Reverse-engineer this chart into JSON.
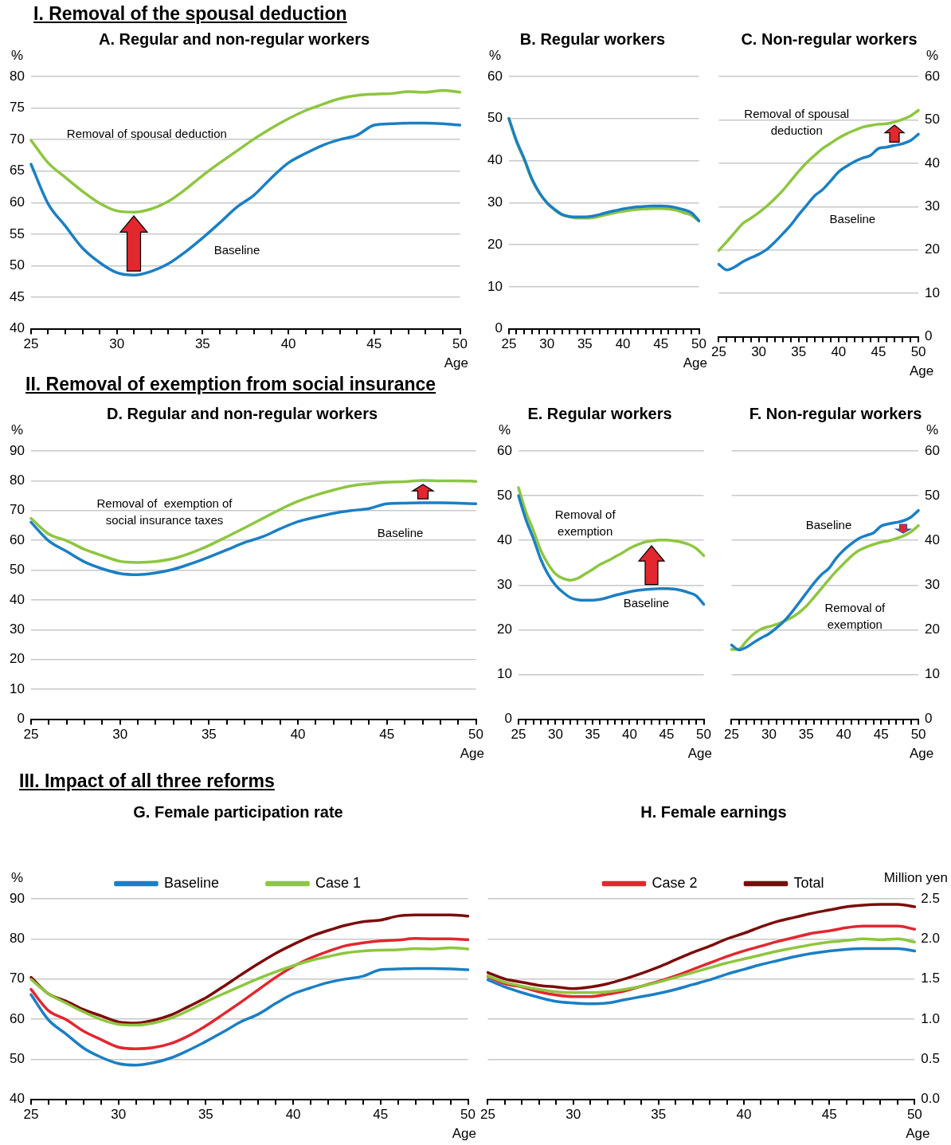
{
  "chart_data": [
    {
      "type": "line",
      "title": "A. Regular and non-regular workers",
      "annotations": [
        "I. Removal of the spousal deduction"
      ],
      "ylabel": "%",
      "xlabel": "Age",
      "categories": [
        "25",
        null,
        null,
        null,
        null,
        "30",
        null,
        null,
        null,
        null,
        "35",
        null,
        null,
        null,
        null,
        "40",
        null,
        null,
        null,
        null,
        "45",
        null,
        null,
        null,
        null,
        "50"
      ],
      "ylim": [
        40,
        80
      ],
      "yticks": [
        40,
        45,
        50,
        55,
        60,
        65,
        70,
        75,
        80
      ],
      "grid": "y",
      "series": [
        {
          "name": "Baseline",
          "color": "#1b7fc4",
          "values": [
            66.1,
            59.8,
            56.3,
            52.8,
            50.5,
            48.9,
            48.5,
            49.1,
            50.3,
            52.2,
            54.4,
            56.8,
            59.3,
            61.2,
            63.9,
            66.3,
            67.8,
            69.1,
            70.0,
            70.7,
            72.3,
            72.5,
            72.6,
            72.6,
            72.5,
            72.3
          ]
        },
        {
          "name": "Removal of spousal deduction",
          "color": "#8dc63f",
          "values": [
            69.9,
            66.3,
            64.0,
            61.8,
            59.9,
            58.7,
            58.5,
            59.0,
            60.2,
            62.1,
            64.3,
            66.3,
            68.2,
            70.1,
            71.8,
            73.3,
            74.6,
            75.6,
            76.5,
            77.0,
            77.2,
            77.3,
            77.6,
            77.5,
            77.8,
            77.5
          ]
        }
      ]
    },
    {
      "type": "line",
      "title": "B. Regular workers",
      "ylabel": "%",
      "xlabel": "Age",
      "categories": [
        "25",
        null,
        null,
        null,
        null,
        "30",
        null,
        null,
        null,
        null,
        "35",
        null,
        null,
        null,
        null,
        "40",
        null,
        null,
        null,
        null,
        "45",
        null,
        null,
        null,
        null,
        "50"
      ],
      "ylim": [
        0,
        60
      ],
      "yticks": [
        0,
        10,
        20,
        30,
        40,
        50,
        60
      ],
      "grid": "y",
      "series": [
        {
          "color": "#1b7fc4",
          "values": [
            50,
            44.7,
            40.5,
            35.8,
            32.4,
            30,
            28.4,
            27.2,
            26.7,
            26.6,
            26.6,
            26.8,
            27.2,
            27.7,
            28.1,
            28.5,
            28.8,
            29.0,
            29.1,
            29.2,
            29.2,
            29.1,
            28.8,
            28.3,
            27.6,
            25.7
          ]
        },
        {
          "color": "#8dc63f",
          "values": [
            50,
            44.5,
            40.3,
            35.6,
            32.3,
            30,
            28.3,
            27.1,
            26.6,
            26.3,
            26.3,
            26.4,
            26.8,
            27.2,
            27.6,
            27.9,
            28.2,
            28.4,
            28.5,
            28.6,
            28.6,
            28.5,
            28.2,
            27.6,
            27.0,
            25.6
          ]
        }
      ]
    },
    {
      "type": "line",
      "title": "C. Non-regular workers",
      "y2label": "%",
      "xlabel": "Age",
      "categories": [
        "25",
        null,
        null,
        null,
        null,
        "30",
        null,
        null,
        null,
        null,
        "35",
        null,
        null,
        null,
        null,
        "40",
        null,
        null,
        null,
        null,
        "45",
        null,
        null,
        null,
        null,
        "50"
      ],
      "y2lim": [
        0,
        60
      ],
      "y2ticks": [
        0,
        10,
        20,
        30,
        40,
        50,
        60
      ],
      "grid": "y",
      "series": [
        {
          "name": "Baseline",
          "axis": "y2",
          "color": "#1b7fc4",
          "values": [
            16.7,
            15.4,
            16.1,
            17.3,
            18.2,
            19.0,
            20.1,
            21.8,
            23.7,
            25.7,
            28.1,
            30.3,
            32.5,
            33.9,
            35.9,
            38.0,
            39.3,
            40.4,
            41.2,
            41.8,
            43.4,
            43.7,
            44.1,
            44.5,
            45.2,
            46.7
          ]
        },
        {
          "name": "Removal of spousal deduction",
          "axis": "y2",
          "color": "#8dc63f",
          "values": [
            19.9,
            21.9,
            24.0,
            26.1,
            27.3,
            28.6,
            30.1,
            31.8,
            33.7,
            35.9,
            38.1,
            40.1,
            41.8,
            43.4,
            44.6,
            45.8,
            46.8,
            47.6,
            48.3,
            48.7,
            49.0,
            49.1,
            49.5,
            50.1,
            50.9,
            52.2
          ]
        }
      ]
    },
    {
      "type": "line",
      "title": "D. Regular and non-regular workers",
      "annotations": [
        "II. Removal of exemption from social insurance"
      ],
      "ylabel": "%",
      "xlabel": "Age",
      "categories": [
        "25",
        null,
        null,
        null,
        null,
        "30",
        null,
        null,
        null,
        null,
        "35",
        null,
        null,
        null,
        null,
        "40",
        null,
        null,
        null,
        null,
        "45",
        null,
        null,
        null,
        null,
        "50"
      ],
      "ylim": [
        0,
        90
      ],
      "yticks": [
        0,
        10,
        20,
        30,
        40,
        50,
        60,
        70,
        80,
        90
      ],
      "grid": "y",
      "series": [
        {
          "name": "Baseline",
          "color": "#1b7fc4",
          "values": [
            66.1,
            59.8,
            56.3,
            52.8,
            50.5,
            48.9,
            48.5,
            49.1,
            50.3,
            52.2,
            54.4,
            56.8,
            59.3,
            61.2,
            63.9,
            66.3,
            67.8,
            69.1,
            70.0,
            70.7,
            72.3,
            72.5,
            72.6,
            72.6,
            72.5,
            72.3
          ]
        },
        {
          "name": "Removal of  exemption of social insurance taxes",
          "color": "#8dc63f",
          "values": [
            67.4,
            62.1,
            59.9,
            57.0,
            54.9,
            53.0,
            52.6,
            52.9,
            53.9,
            55.8,
            58.3,
            61.2,
            64.2,
            67.3,
            70.4,
            73.1,
            75.2,
            76.9,
            78.3,
            79.0,
            79.5,
            79.7,
            80.1,
            80.0,
            80.0,
            79.8
          ]
        }
      ]
    },
    {
      "type": "line",
      "title": "E. Regular workers",
      "ylabel": "%",
      "xlabel": "Age",
      "categories": [
        "25",
        null,
        null,
        null,
        null,
        "30",
        null,
        null,
        null,
        null,
        "35",
        null,
        null,
        null,
        null,
        "40",
        null,
        null,
        null,
        null,
        "45",
        null,
        null,
        null,
        null,
        "50"
      ],
      "ylim": [
        0,
        60
      ],
      "yticks": [
        0,
        10,
        20,
        30,
        40,
        50,
        60
      ],
      "grid": "y",
      "series": [
        {
          "name": "Baseline",
          "color": "#1b7fc4",
          "values": [
            50,
            44.7,
            40.5,
            35.8,
            32.4,
            30,
            28.4,
            27.2,
            26.7,
            26.6,
            26.6,
            26.8,
            27.2,
            27.7,
            28.1,
            28.5,
            28.8,
            29.0,
            29.1,
            29.2,
            29.2,
            29.1,
            28.8,
            28.3,
            27.6,
            25.7
          ]
        },
        {
          "name": "Removal of exemption",
          "color": "#8dc63f",
          "values": [
            51.8,
            46.4,
            42.3,
            37.8,
            34.7,
            32.5,
            31.5,
            31.1,
            31.5,
            32.5,
            33.5,
            34.6,
            35.4,
            36.3,
            37.2,
            38.2,
            39.0,
            39.6,
            39.9,
            40.1,
            40.1,
            39.9,
            39.6,
            39.1,
            38.2,
            36.6
          ]
        }
      ]
    },
    {
      "type": "line",
      "title": "F. Non-regular workers",
      "y2label": "%",
      "xlabel": "Age",
      "categories": [
        "25",
        null,
        null,
        null,
        null,
        "30",
        null,
        null,
        null,
        null,
        "35",
        null,
        null,
        null,
        null,
        "40",
        null,
        null,
        null,
        null,
        "45",
        null,
        null,
        null,
        null,
        "50"
      ],
      "y2lim": [
        0,
        60
      ],
      "y2ticks": [
        0,
        10,
        20,
        30,
        40,
        50,
        60
      ],
      "grid": "y",
      "series": [
        {
          "name": "Baseline",
          "axis": "y2",
          "color": "#1b7fc4",
          "values": [
            16.6,
            15.5,
            16.1,
            17.2,
            18.2,
            19.1,
            20.4,
            21.9,
            23.8,
            26.0,
            28.2,
            30.4,
            32.3,
            33.7,
            36.0,
            37.8,
            39.2,
            40.4,
            41.1,
            41.7,
            43.2,
            43.7,
            44.0,
            44.4,
            45.2,
            46.7
          ]
        },
        {
          "name": "Removal of exemption",
          "axis": "y2",
          "color": "#8dc63f",
          "values": [
            15.6,
            15.7,
            17.5,
            19.1,
            20.2,
            20.7,
            21.2,
            21.9,
            22.7,
            23.8,
            25.3,
            27.2,
            29.2,
            31.2,
            33.1,
            34.8,
            36.4,
            37.7,
            38.5,
            39.1,
            39.6,
            39.9,
            40.4,
            41.0,
            41.9,
            43.3
          ]
        }
      ]
    },
    {
      "type": "line",
      "title": "G. Female participation rate",
      "annotations": [
        "III. Impact of all three reforms"
      ],
      "ylabel": "%",
      "xlabel": "Age",
      "legend": "top",
      "categories": [
        "25",
        null,
        null,
        null,
        null,
        "30",
        null,
        null,
        null,
        null,
        "35",
        null,
        null,
        null,
        null,
        "40",
        null,
        null,
        null,
        null,
        "45",
        null,
        null,
        null,
        null,
        "50"
      ],
      "ylim": [
        40,
        90
      ],
      "yticks": [
        40,
        50,
        60,
        70,
        80,
        90
      ],
      "grid": "y",
      "series": [
        {
          "name": "Baseline",
          "color": "#1b7fc4",
          "values": [
            66.1,
            59.8,
            56.3,
            52.8,
            50.5,
            48.9,
            48.5,
            49.1,
            50.3,
            52.2,
            54.4,
            56.8,
            59.3,
            61.2,
            63.9,
            66.3,
            67.8,
            69.1,
            70.0,
            70.7,
            72.3,
            72.5,
            72.6,
            72.6,
            72.5,
            72.3
          ]
        },
        {
          "name": "Case 1",
          "color": "#8dc63f",
          "values": [
            69.9,
            66.3,
            64.0,
            61.8,
            59.9,
            58.7,
            58.5,
            59.0,
            60.2,
            62.1,
            64.3,
            66.3,
            68.2,
            70.1,
            71.8,
            73.3,
            74.6,
            75.6,
            76.5,
            77.0,
            77.2,
            77.3,
            77.6,
            77.5,
            77.8,
            77.5
          ]
        },
        {
          "color": "#e2272f",
          "values": [
            67.4,
            62.1,
            59.9,
            57.0,
            54.9,
            53.0,
            52.6,
            52.9,
            53.9,
            55.8,
            58.3,
            61.2,
            64.2,
            67.3,
            70.4,
            73.1,
            75.2,
            76.9,
            78.3,
            79.0,
            79.5,
            79.7,
            80.1,
            80.0,
            80.0,
            79.8
          ]
        },
        {
          "color": "#7b0c0c",
          "values": [
            70.4,
            66.3,
            64.5,
            62.4,
            60.8,
            59.3,
            59.0,
            59.7,
            61.0,
            63.1,
            65.3,
            68.1,
            71.0,
            73.8,
            76.4,
            78.6,
            80.6,
            82.1,
            83.4,
            84.3,
            84.7,
            85.7,
            86.0,
            86.0,
            86.0,
            85.7
          ]
        }
      ]
    },
    {
      "type": "line",
      "title": "H. Female earnings",
      "y2label": "Million yen",
      "xlabel": "Age",
      "legend": "top",
      "categories": [
        "25",
        null,
        null,
        null,
        null,
        "30",
        null,
        null,
        null,
        null,
        "35",
        null,
        null,
        null,
        null,
        "40",
        null,
        null,
        null,
        null,
        "45",
        null,
        null,
        null,
        null,
        "50"
      ],
      "y2lim": [
        0,
        2.5
      ],
      "y2ticks": [
        {
          "value": 0,
          "label": "0.0"
        },
        0.5,
        {
          "value": 1,
          "label": "1.0"
        },
        1.5,
        {
          "value": 2,
          "label": "2.0"
        },
        2.5
      ],
      "grid": "y",
      "series": [
        {
          "axis": "y2",
          "color": "#1b7fc4",
          "values": [
            1.49,
            1.4,
            1.33,
            1.27,
            1.22,
            1.2,
            1.19,
            1.2,
            1.24,
            1.28,
            1.32,
            1.37,
            1.43,
            1.49,
            1.56,
            1.62,
            1.68,
            1.73,
            1.78,
            1.82,
            1.85,
            1.87,
            1.88,
            1.88,
            1.88,
            1.85
          ]
        },
        {
          "axis": "y2",
          "color": "#8dc63f",
          "values": [
            1.54,
            1.46,
            1.41,
            1.37,
            1.34,
            1.33,
            1.33,
            1.34,
            1.37,
            1.41,
            1.46,
            1.52,
            1.58,
            1.64,
            1.7,
            1.75,
            1.8,
            1.85,
            1.89,
            1.93,
            1.96,
            1.98,
            2.0,
            1.99,
            2.0,
            1.96
          ]
        },
        {
          "name": "Case 2",
          "axis": "y2",
          "color": "#e2272f",
          "values": [
            1.53,
            1.44,
            1.4,
            1.34,
            1.3,
            1.28,
            1.28,
            1.31,
            1.35,
            1.41,
            1.47,
            1.54,
            1.62,
            1.7,
            1.78,
            1.85,
            1.91,
            1.97,
            2.02,
            2.07,
            2.1,
            2.14,
            2.16,
            2.16,
            2.16,
            2.12
          ]
        },
        {
          "name": "Total",
          "axis": "y2",
          "color": "#7b0c0c",
          "values": [
            1.58,
            1.5,
            1.46,
            1.42,
            1.4,
            1.38,
            1.4,
            1.44,
            1.5,
            1.57,
            1.65,
            1.74,
            1.83,
            1.91,
            2.0,
            2.07,
            2.15,
            2.22,
            2.27,
            2.32,
            2.36,
            2.4,
            2.42,
            2.43,
            2.43,
            2.4
          ]
        }
      ]
    }
  ]
}
